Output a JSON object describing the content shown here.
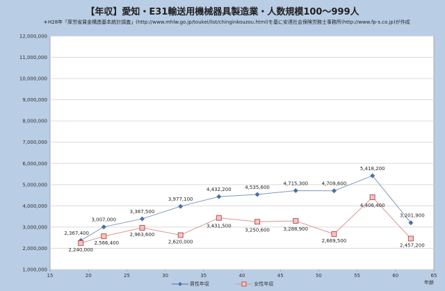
{
  "chart_data": {
    "type": "line",
    "title": "【年収】愛知・E31輸送用機械器具製造業・人数規模100～999人",
    "subtitle": "＊H28年「厚労省賃金構造基本統計調査」(http://www.mhlw.go.jp/toukei/list/chinginkouzou.html)を基に安達社会保険労務士事務所(http://www.fp-s.co.jp)が作成",
    "xlabel": "年齢",
    "ylabel": "",
    "xlim": [
      15,
      65
    ],
    "ylim": [
      1000000,
      12000000
    ],
    "x_ticks": [
      "15",
      "20",
      "25",
      "30",
      "35",
      "40",
      "45",
      "50",
      "55",
      "60",
      "65"
    ],
    "y_ticks": [
      "1,000,000",
      "2,000,000",
      "3,000,000",
      "4,000,000",
      "5,000,000",
      "6,000,000",
      "7,000,000",
      "8,000,000",
      "9,000,000",
      "10,000,000",
      "11,000,000",
      "12,000,000"
    ],
    "grid": true,
    "legend_position": "bottom",
    "x": [
      19,
      22,
      27,
      32,
      37,
      42,
      47,
      52,
      57,
      62
    ],
    "series": [
      {
        "name": "男性年収",
        "color": "#4a6fa5",
        "marker": "diamond",
        "values": [
          2367400,
          3007000,
          3387500,
          3977100,
          4432200,
          4535600,
          4715300,
          4709600,
          5418200,
          3201900
        ],
        "labels": [
          "2,367,400",
          "3,007,000",
          "3,387,500",
          "3,977,100",
          "4,432,200",
          "4,535,600",
          "4,715,300",
          "4,709,600",
          "5,418,200",
          "3,201,900"
        ]
      },
      {
        "name": "女性年収",
        "color": "#c0504d",
        "marker": "square",
        "values": [
          2240000,
          2566400,
          2963600,
          2620000,
          3431500,
          3250600,
          3288900,
          2669500,
          4406400,
          2457200
        ],
        "labels": [
          "2,240,000",
          "2,566,400",
          "2,963,600",
          "2,620,000",
          "3,431,500",
          "3,250,600",
          "3,288,900",
          "2,669,500",
          "4,406,400",
          "2,457,200"
        ]
      }
    ]
  }
}
